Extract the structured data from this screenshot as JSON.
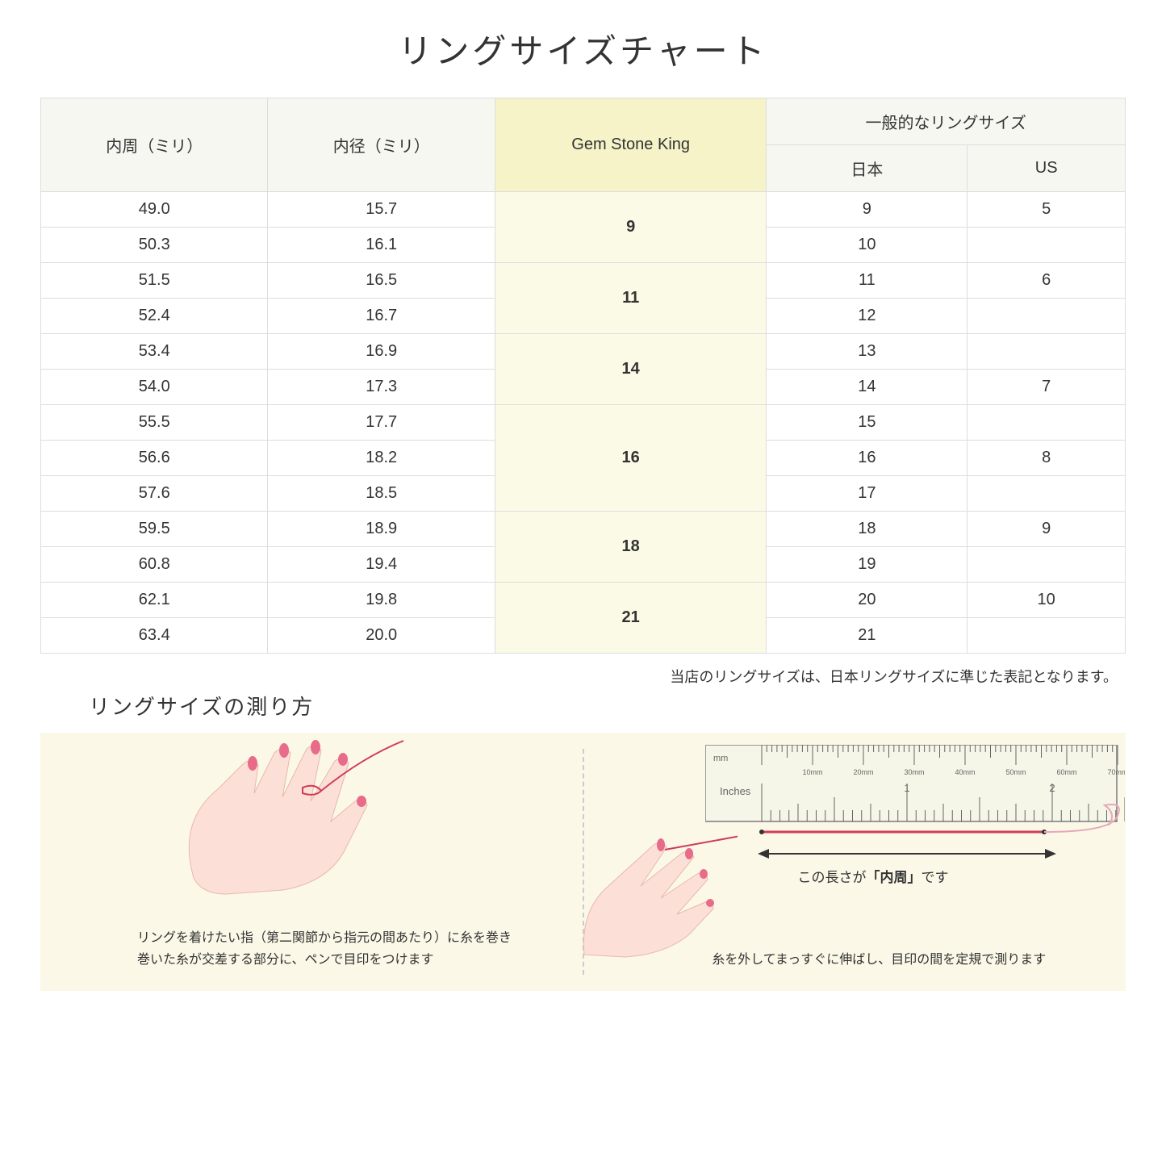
{
  "title": "リングサイズチャート",
  "columns": {
    "circumference": "内周（ミリ）",
    "diameter": "内径（ミリ）",
    "gsk": "Gem Stone King",
    "general_header": "一般的なリングサイズ",
    "japan": "日本",
    "us": "US"
  },
  "rows": [
    {
      "circ": "49.0",
      "dia": "15.7",
      "gsk": "9",
      "gsk_span": 2,
      "jp": "9",
      "us": "5"
    },
    {
      "circ": "50.3",
      "dia": "16.1",
      "jp": "10",
      "us": ""
    },
    {
      "circ": "51.5",
      "dia": "16.5",
      "gsk": "11",
      "gsk_span": 2,
      "jp": "11",
      "us": "6"
    },
    {
      "circ": "52.4",
      "dia": "16.7",
      "jp": "12",
      "us": ""
    },
    {
      "circ": "53.4",
      "dia": "16.9",
      "gsk": "14",
      "gsk_span": 2,
      "jp": "13",
      "us": ""
    },
    {
      "circ": "54.0",
      "dia": "17.3",
      "jp": "14",
      "us": "7"
    },
    {
      "circ": "55.5",
      "dia": "17.7",
      "gsk": "16",
      "gsk_span": 3,
      "jp": "15",
      "us": ""
    },
    {
      "circ": "56.6",
      "dia": "18.2",
      "jp": "16",
      "us": "8"
    },
    {
      "circ": "57.6",
      "dia": "18.5",
      "jp": "17",
      "us": ""
    },
    {
      "circ": "59.5",
      "dia": "18.9",
      "gsk": "18",
      "gsk_span": 2,
      "jp": "18",
      "us": "9"
    },
    {
      "circ": "60.8",
      "dia": "19.4",
      "jp": "19",
      "us": ""
    },
    {
      "circ": "62.1",
      "dia": "19.8",
      "gsk": "21",
      "gsk_span": 2,
      "jp": "20",
      "us": "10"
    },
    {
      "circ": "63.4",
      "dia": "20.0",
      "jp": "21",
      "us": ""
    }
  ],
  "note": "当店のリングサイズは、日本リングサイズに準じた表記となります。",
  "measure": {
    "title": "リングサイズの測り方",
    "step1": "リングを着けたい指（第二関節から指元の間あたり）に糸を巻き\n巻いた糸が交差する部分に、ペンで目印をつけます",
    "step2": "糸を外してまっすぐに伸ばし、目印の間を定規で測ります",
    "ruler_label_pre": "この長さが",
    "ruler_label_bold": "「内周」",
    "ruler_label_post": "です",
    "ruler_mm": "mm",
    "ruler_inches": "Inches",
    "ruler_mm_ticks": [
      "10mm",
      "20mm",
      "30mm",
      "40mm",
      "50mm",
      "60mm",
      "70mm"
    ],
    "ruler_inch_ticks": [
      "1",
      "2"
    ]
  },
  "colors": {
    "header_bg": "#f7f7f2",
    "gsk_header_bg": "#f5f3c7",
    "gsk_cell_bg": "#fbfae6",
    "measure_bg": "#fbf8e8",
    "border": "#dddddd",
    "hand_skin": "#fce0d8",
    "nail": "#e86b8a",
    "thread": "#d13a5a",
    "ruler_body": "#f5f5e8",
    "ruler_border": "#999"
  }
}
